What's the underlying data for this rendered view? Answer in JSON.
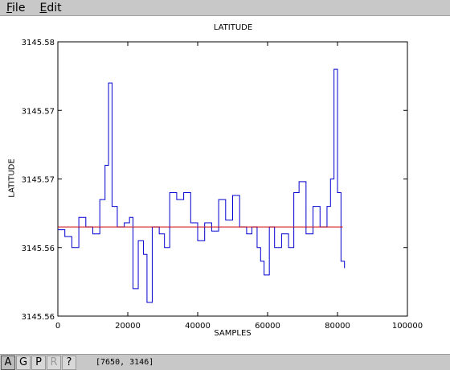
{
  "menubar": {
    "items": [
      {
        "accel": "F",
        "rest": "ile"
      },
      {
        "accel": "E",
        "rest": "dit"
      }
    ]
  },
  "toolbar": {
    "buttons": [
      "A",
      "G",
      "P",
      "R",
      "?"
    ]
  },
  "status": {
    "coordinates": "[7650, 3146]"
  },
  "colors": {
    "series": "#0000d0",
    "mean_line": "#cc0000"
  },
  "chart_data": {
    "type": "line",
    "title": "LATITUDE",
    "xlabel": "SAMPLES",
    "ylabel": "LATITUDE",
    "xlim": [
      0,
      100000
    ],
    "ylim": [
      3145.56,
      3145.58
    ],
    "x_ticks": [
      0,
      20000,
      40000,
      60000,
      80000,
      100000
    ],
    "x_tick_labels": [
      "0",
      "20000",
      "40000",
      "60000",
      "80000",
      "100000"
    ],
    "y_ticks": [
      3145.56,
      3145.565,
      3145.57,
      3145.575,
      3145.58
    ],
    "y_tick_labels": [
      "3145.56",
      "3145.56",
      "3145.57",
      "3145.57",
      "3145.58"
    ],
    "series": [
      {
        "x": [
          0,
          2000,
          4000,
          6000,
          8000,
          10000,
          12000,
          13500,
          14500,
          15500,
          17000,
          19000,
          20500,
          21500,
          23000,
          24500,
          25500,
          27000,
          29000,
          30500,
          32000,
          34000,
          36000,
          38000,
          40000,
          42000,
          44000,
          46000,
          48000,
          50000,
          52000,
          54000,
          55500,
          57000,
          58000,
          59000,
          60500,
          62000,
          64000,
          66000,
          67500,
          69000,
          71000,
          73000,
          75000,
          77000,
          78000,
          79000,
          80000,
          81000,
          82000
        ],
        "y": [
          3145.5663,
          3145.5658,
          3145.565,
          3145.5672,
          3145.5665,
          3145.566,
          3145.5685,
          3145.571,
          3145.577,
          3145.568,
          3145.5665,
          3145.5668,
          3145.5672,
          3145.562,
          3145.5655,
          3145.5645,
          3145.561,
          3145.5665,
          3145.566,
          3145.565,
          3145.569,
          3145.5685,
          3145.569,
          3145.5668,
          3145.5655,
          3145.5668,
          3145.5662,
          3145.5685,
          3145.567,
          3145.5688,
          3145.5665,
          3145.566,
          3145.5665,
          3145.565,
          3145.564,
          3145.563,
          3145.5665,
          3145.565,
          3145.566,
          3145.565,
          3145.569,
          3145.5698,
          3145.566,
          3145.568,
          3145.5665,
          3145.568,
          3145.57,
          3145.578,
          3145.569,
          3145.564,
          3145.5635
        ]
      },
      {
        "x": [
          0,
          81500
        ],
        "y": [
          3145.5665,
          3145.5665
        ]
      }
    ],
    "grid": false,
    "legend": "none"
  }
}
